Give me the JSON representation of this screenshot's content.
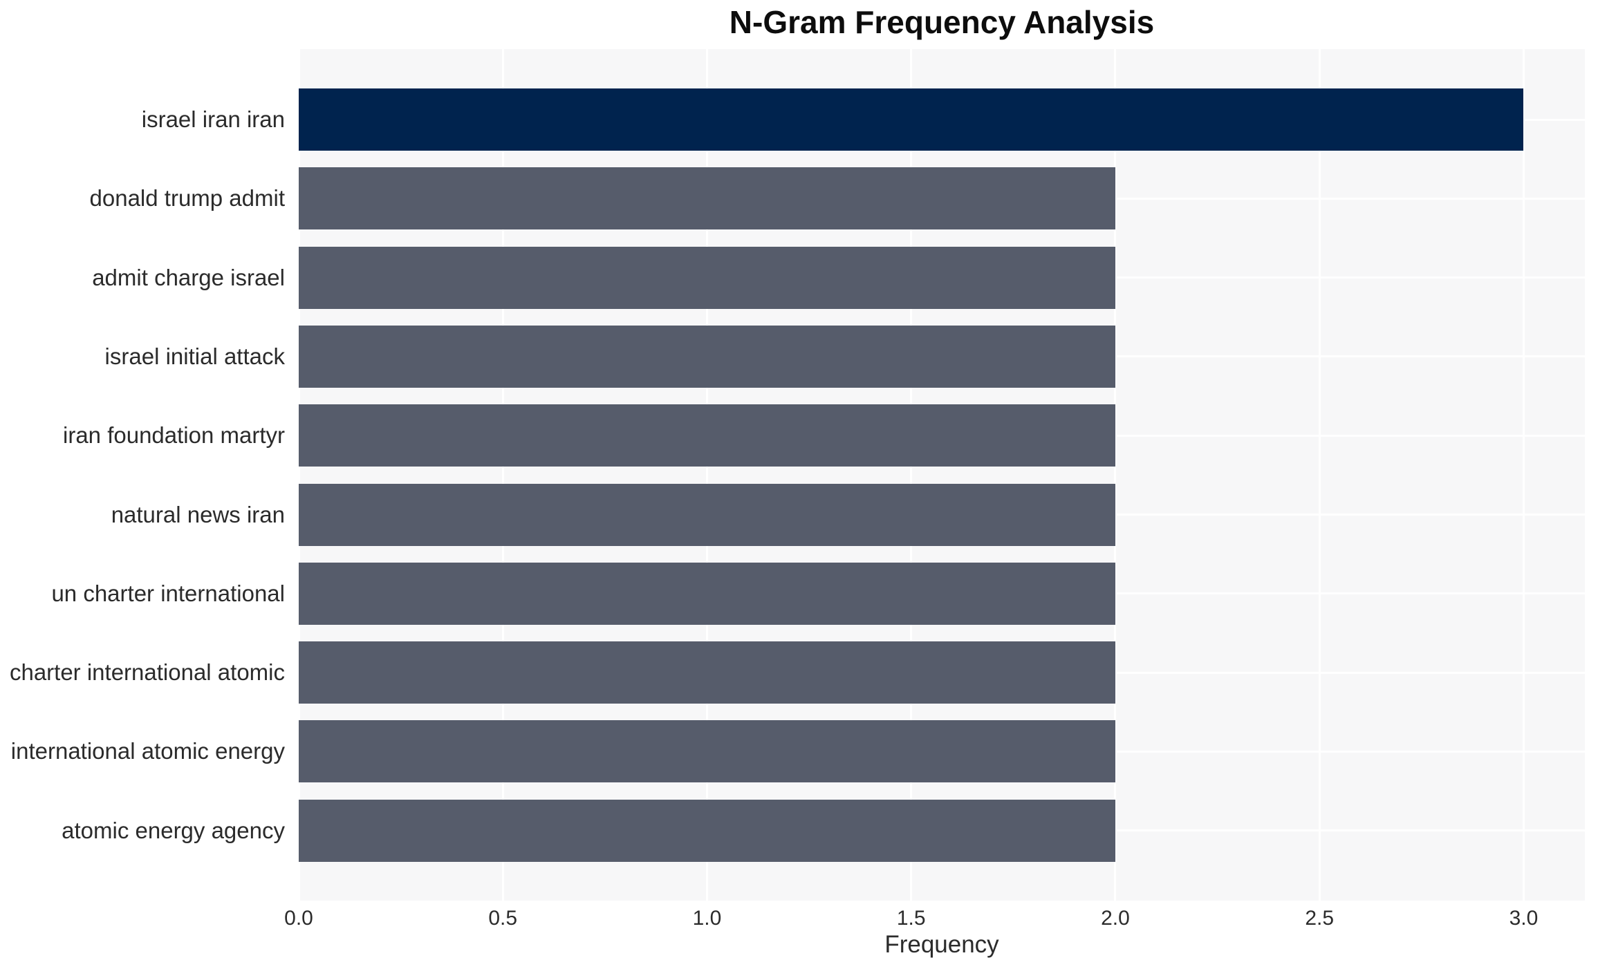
{
  "chart_data": {
    "type": "bar",
    "orientation": "horizontal",
    "title": "N-Gram Frequency Analysis",
    "xlabel": "Frequency",
    "ylabel": "",
    "categories": [
      "israel iran iran",
      "donald trump admit",
      "admit charge israel",
      "israel initial attack",
      "iran foundation martyr",
      "natural news iran",
      "un charter international",
      "charter international atomic",
      "international atomic energy",
      "atomic energy agency"
    ],
    "values": [
      3,
      2,
      2,
      2,
      2,
      2,
      2,
      2,
      2,
      2
    ],
    "xlim": [
      0,
      3.15
    ],
    "xticks": [
      0.0,
      0.5,
      1.0,
      1.5,
      2.0,
      2.5,
      3.0
    ],
    "xtick_labels": [
      "0.0",
      "0.5",
      "1.0",
      "1.5",
      "2.0",
      "2.5",
      "3.0"
    ],
    "grid": "on",
    "legend": "none",
    "bar_colors": [
      "#00234e",
      "#565c6b",
      "#565c6b",
      "#565c6b",
      "#565c6b",
      "#565c6b",
      "#565c6b",
      "#565c6b",
      "#565c6b",
      "#565c6b"
    ]
  },
  "style": {
    "figure_background": "#ffffff",
    "plot_background": "#f7f7f8",
    "gridline_color": "#ffffff",
    "title_color": "#0d0d0d",
    "label_color": "#2b2b2b",
    "tick_color": "#2b2b2b"
  }
}
